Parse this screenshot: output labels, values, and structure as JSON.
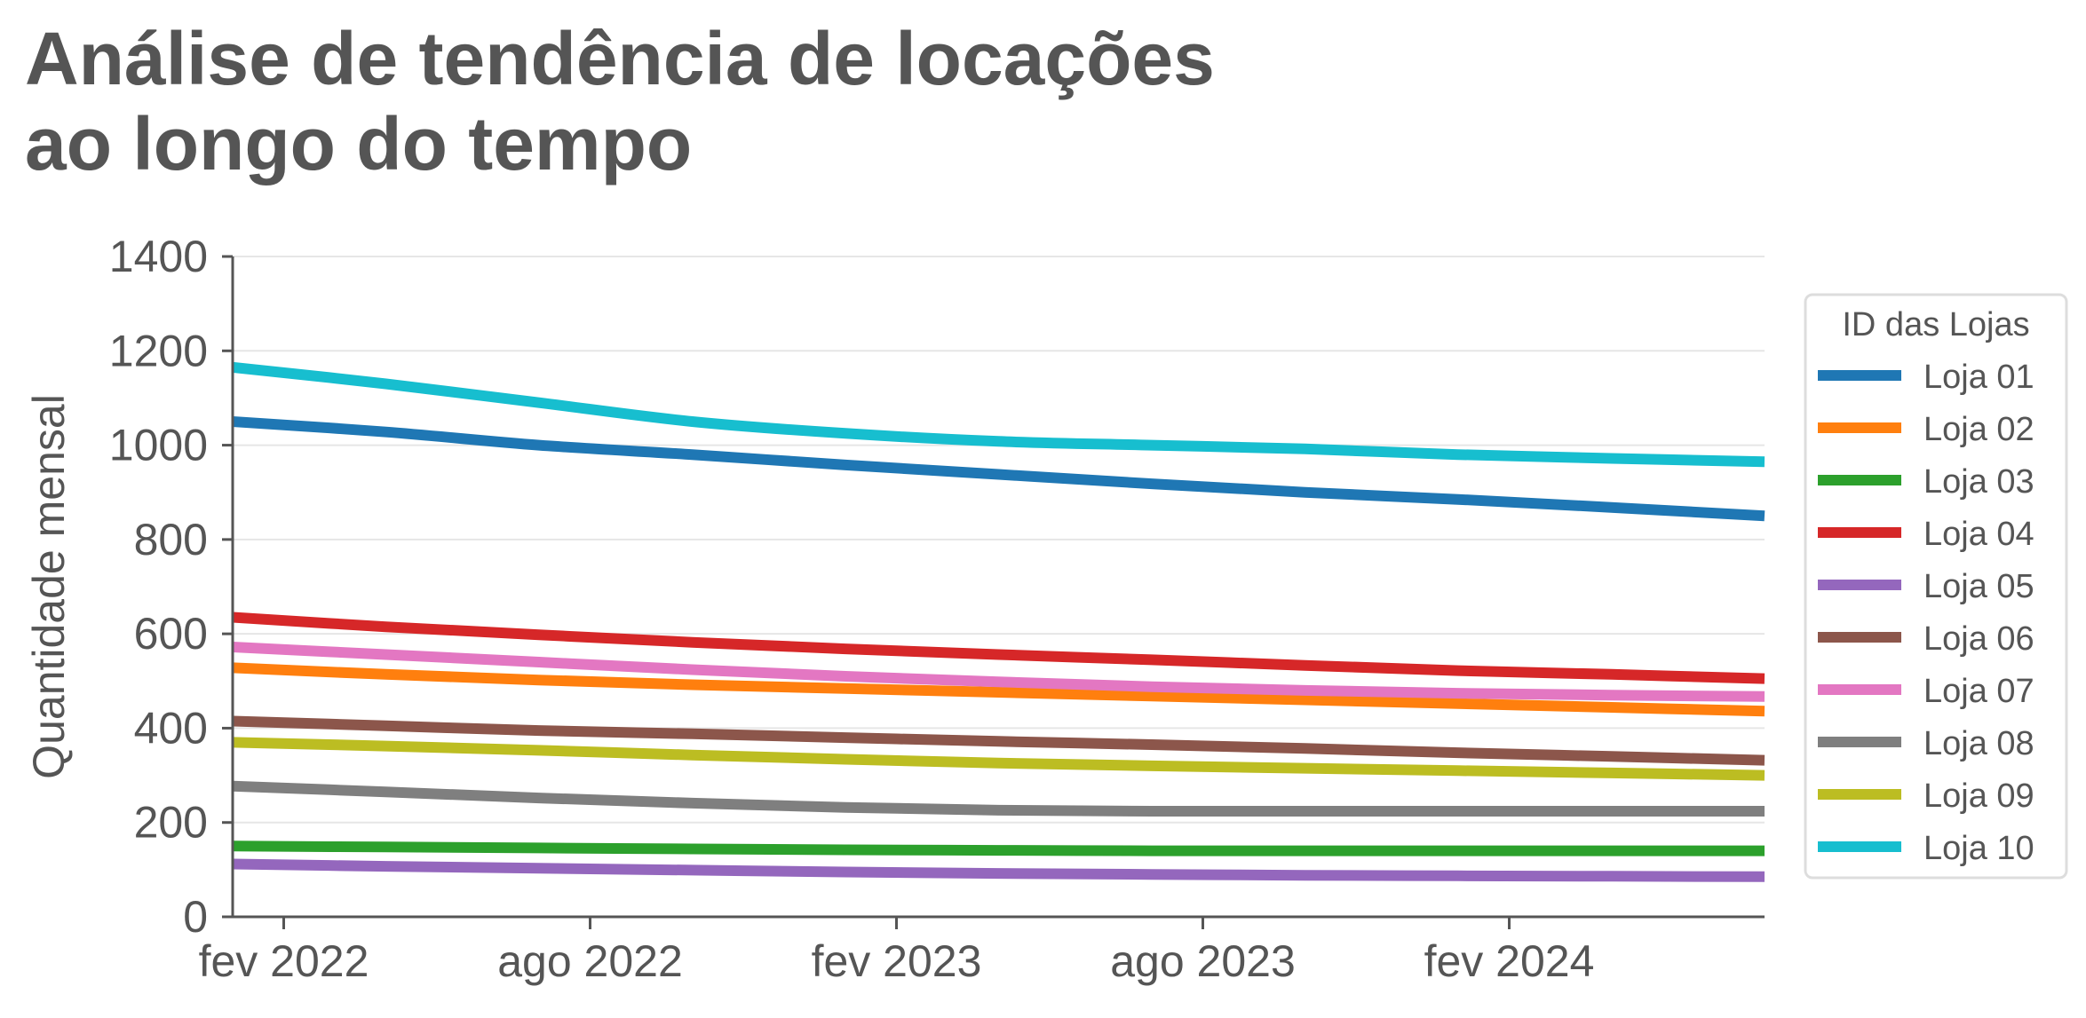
{
  "chart_data": {
    "type": "line",
    "title_lines": [
      "Análise de tendência de locações",
      "ao longo do tempo"
    ],
    "xlabel": "",
    "ylabel": "Quantidade mensal",
    "ylim": [
      0,
      1400
    ],
    "yticks": [
      0,
      200,
      400,
      600,
      800,
      1000,
      1200,
      1400
    ],
    "xlim": [
      "2022-01",
      "2024-07"
    ],
    "xticks": [
      {
        "value": "2022-02",
        "label": "fev 2022"
      },
      {
        "value": "2022-08",
        "label": "ago 2022"
      },
      {
        "value": "2023-02",
        "label": "fev 2023"
      },
      {
        "value": "2023-08",
        "label": "ago 2023"
      },
      {
        "value": "2024-02",
        "label": "fev 2024"
      }
    ],
    "grid": "horizontal",
    "legend": {
      "title": "ID das Lojas",
      "position": "right"
    },
    "x": [
      "2022-01",
      "2022-04",
      "2022-07",
      "2022-10",
      "2023-01",
      "2023-04",
      "2023-07",
      "2023-10",
      "2024-01",
      "2024-04",
      "2024-07"
    ],
    "series": [
      {
        "name": "Loja 01",
        "color": "#1f77b4",
        "values": [
          1050,
          1028,
          1000,
          980,
          958,
          938,
          918,
          900,
          885,
          868,
          850
        ]
      },
      {
        "name": "Loja 02",
        "color": "#ff7f0e",
        "values": [
          528,
          514,
          502,
          492,
          484,
          476,
          468,
          460,
          452,
          444,
          436
        ]
      },
      {
        "name": "Loja 03",
        "color": "#2ca02c",
        "values": [
          150,
          148,
          146,
          144,
          142,
          141,
          140,
          140,
          140,
          140,
          140
        ]
      },
      {
        "name": "Loja 04",
        "color": "#d62728",
        "values": [
          635,
          615,
          598,
          582,
          568,
          556,
          545,
          533,
          522,
          514,
          505
        ]
      },
      {
        "name": "Loja 05",
        "color": "#9467bd",
        "values": [
          112,
          107,
          103,
          99,
          95,
          92,
          90,
          88,
          87,
          86,
          85
        ]
      },
      {
        "name": "Loja 06",
        "color": "#8c564b",
        "values": [
          415,
          405,
          395,
          388,
          380,
          372,
          365,
          357,
          348,
          340,
          332
        ]
      },
      {
        "name": "Loja 07",
        "color": "#e377c2",
        "values": [
          572,
          556,
          540,
          524,
          510,
          498,
          488,
          480,
          474,
          470,
          467
        ]
      },
      {
        "name": "Loja 08",
        "color": "#7f7f7f",
        "values": [
          277,
          265,
          252,
          241,
          232,
          226,
          224,
          224,
          224,
          224,
          224
        ]
      },
      {
        "name": "Loja 09",
        "color": "#bcbd22",
        "values": [
          370,
          362,
          353,
          343,
          334,
          326,
          320,
          315,
          310,
          305,
          300
        ]
      },
      {
        "name": "Loja 10",
        "color": "#17becf",
        "values": [
          1165,
          1130,
          1090,
          1050,
          1025,
          1008,
          1000,
          992,
          980,
          972,
          965
        ]
      }
    ]
  }
}
